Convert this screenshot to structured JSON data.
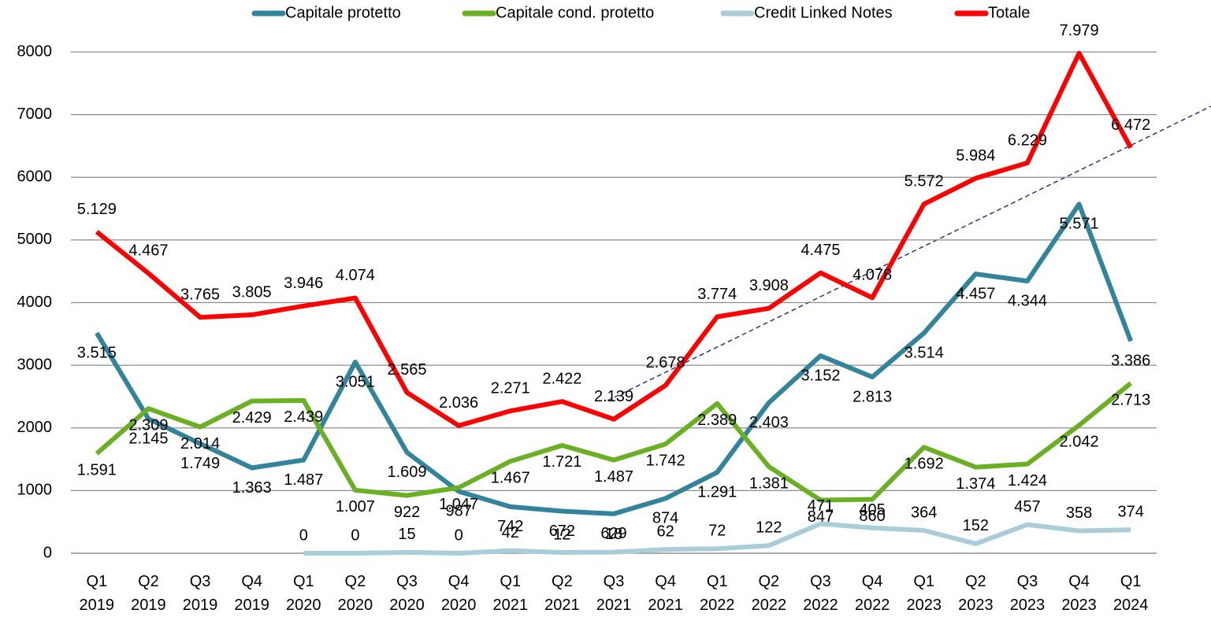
{
  "chart_data": {
    "type": "line",
    "categories": [
      "Q1 2019",
      "Q2 2019",
      "Q3 2019",
      "Q4 2019",
      "Q1 2020",
      "Q2 2020",
      "Q3 2020",
      "Q4 2020",
      "Q1 2021",
      "Q2 2021",
      "Q3 2021",
      "Q4 2021",
      "Q1 2022",
      "Q2 2022",
      "Q3 2022",
      "Q4 2022",
      "Q1 2023",
      "Q2 2023",
      "Q3 2023",
      "Q4 2023",
      "Q1 2024"
    ],
    "series": [
      {
        "name": "Capitale protetto",
        "color": "#31849b",
        "values": [
          3515,
          2145,
          1749,
          1363,
          1487,
          3051,
          1609,
          987,
          742,
          672,
          629,
          874,
          1291,
          2403,
          3152,
          2813,
          3514,
          4457,
          4344,
          5571,
          3386
        ],
        "value_labels": [
          "3.515",
          "2.145",
          "1.749",
          "1.363",
          "1.487",
          "3.051",
          "1.609",
          "987",
          "742",
          "672",
          "629",
          "874",
          "1.291",
          "2.403",
          "3.152",
          "2.813",
          "3.514",
          "4.457",
          "4.344",
          "5.571",
          "3.386"
        ]
      },
      {
        "name": "Capitale cond. protetto",
        "color": "#6ab023",
        "values": [
          1591,
          2309,
          2014,
          2429,
          2439,
          1007,
          922,
          1047,
          1467,
          1721,
          1487,
          1742,
          2389,
          1381,
          847,
          860,
          1692,
          1374,
          1424,
          2042,
          2713
        ],
        "value_labels": [
          "1.591",
          "2.309",
          "2.014",
          "2.429",
          "2.439",
          "1.007",
          "922",
          "1.047",
          "1.467",
          "1.721",
          "1.487",
          "1.742",
          "2.389",
          "1.381",
          "847",
          "860",
          "1.692",
          "1.374",
          "1.424",
          "2.042",
          "2.713"
        ]
      },
      {
        "name": "Credit Linked Notes",
        "color": "#a9cdd9",
        "values": [
          null,
          null,
          null,
          null,
          0,
          0,
          15,
          0,
          42,
          12,
          18,
          62,
          72,
          122,
          471,
          405,
          364,
          152,
          457,
          358,
          374
        ],
        "value_labels": [
          null,
          null,
          null,
          null,
          "0",
          "0",
          "15",
          "0",
          "42",
          "12",
          "18",
          "62",
          "72",
          "122",
          "471",
          "405",
          "364",
          "152",
          "457",
          "358",
          "374"
        ]
      },
      {
        "name": "Totale",
        "color": "#ff0000",
        "values": [
          5129,
          4467,
          3765,
          3805,
          3946,
          4074,
          2565,
          2036,
          2271,
          2422,
          2139,
          2678,
          3774,
          3908,
          4475,
          4078,
          5572,
          5984,
          6229,
          7979,
          6472
        ],
        "value_labels": [
          "5.129",
          "4.467",
          "3.765",
          "3.805",
          "3.946",
          "4.074",
          "2.565",
          "2.036",
          "2.271",
          "2.422",
          "2.139",
          "2.678",
          "3.774",
          "3.908",
          "4.475",
          "4.078",
          "5.572",
          "5.984",
          "6.229",
          "7.979",
          "6.472"
        ]
      }
    ],
    "ylim": [
      0,
      8000
    ],
    "yticks": [
      0,
      1000,
      2000,
      3000,
      4000,
      5000,
      6000,
      7000,
      8000
    ],
    "grid": true,
    "legend": "top"
  }
}
